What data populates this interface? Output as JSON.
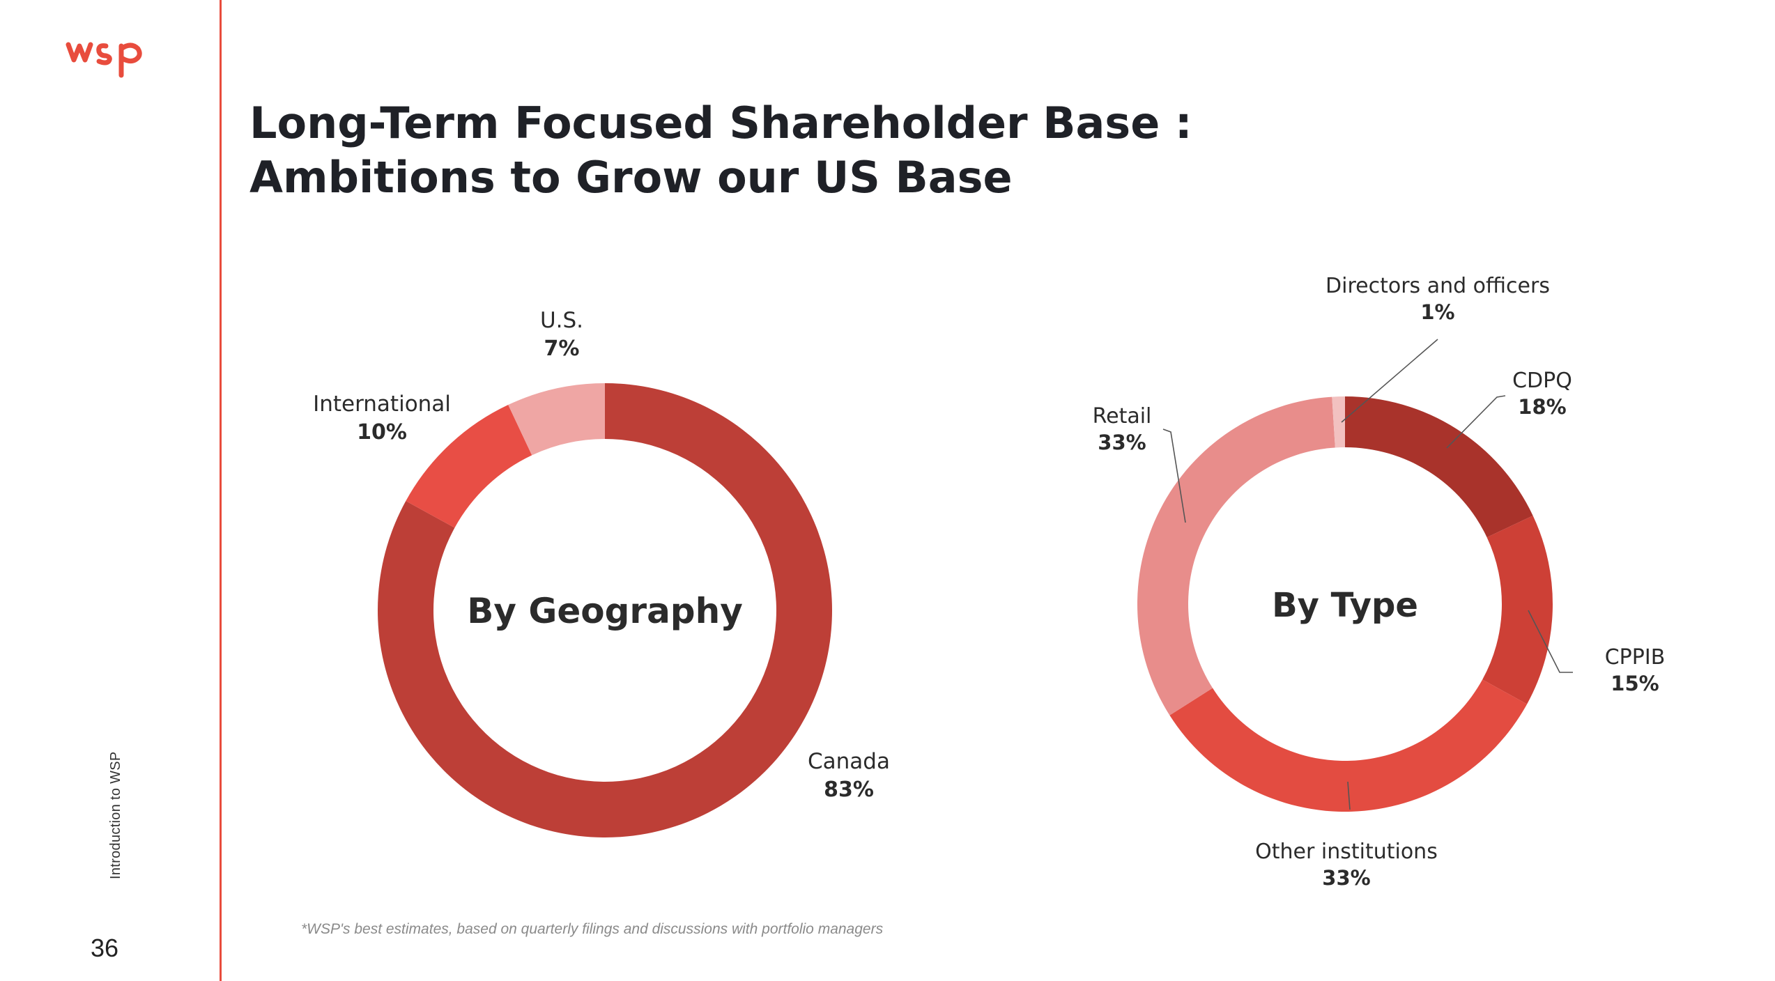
{
  "brand": {
    "logo_text": "wsp",
    "accent_color": "#e84c3d"
  },
  "sidebar": {
    "vertical_label": "Introduction to WSP",
    "page_number": "36"
  },
  "title": {
    "line1": "Long-Term Focused Shareholder Base :",
    "line2": "Ambitions to Grow our US Base"
  },
  "footnote": "*WSP's best estimates, based on quarterly filings and discussions with portfolio managers",
  "chart_data": [
    {
      "type": "pie",
      "title": "By Geography",
      "categories": [
        "Canada",
        "International",
        "U.S."
      ],
      "values": [
        83,
        10,
        7
      ],
      "value_labels": [
        "83%",
        "10%",
        "7%"
      ],
      "colors": [
        "#bd3f37",
        "#e84e45",
        "#efa6a4"
      ]
    },
    {
      "type": "pie",
      "title": "By Type",
      "categories": [
        "CDPQ",
        "CPPIB",
        "Other institutions",
        "Retail",
        "Directors and officers"
      ],
      "values": [
        18,
        15,
        33,
        33,
        1
      ],
      "value_labels": [
        "18%",
        "15%",
        "33%",
        "33%",
        "1%"
      ],
      "colors": [
        "#a9332b",
        "#cd4036",
        "#e34c41",
        "#e88d8b",
        "#f2c1c0"
      ]
    }
  ]
}
